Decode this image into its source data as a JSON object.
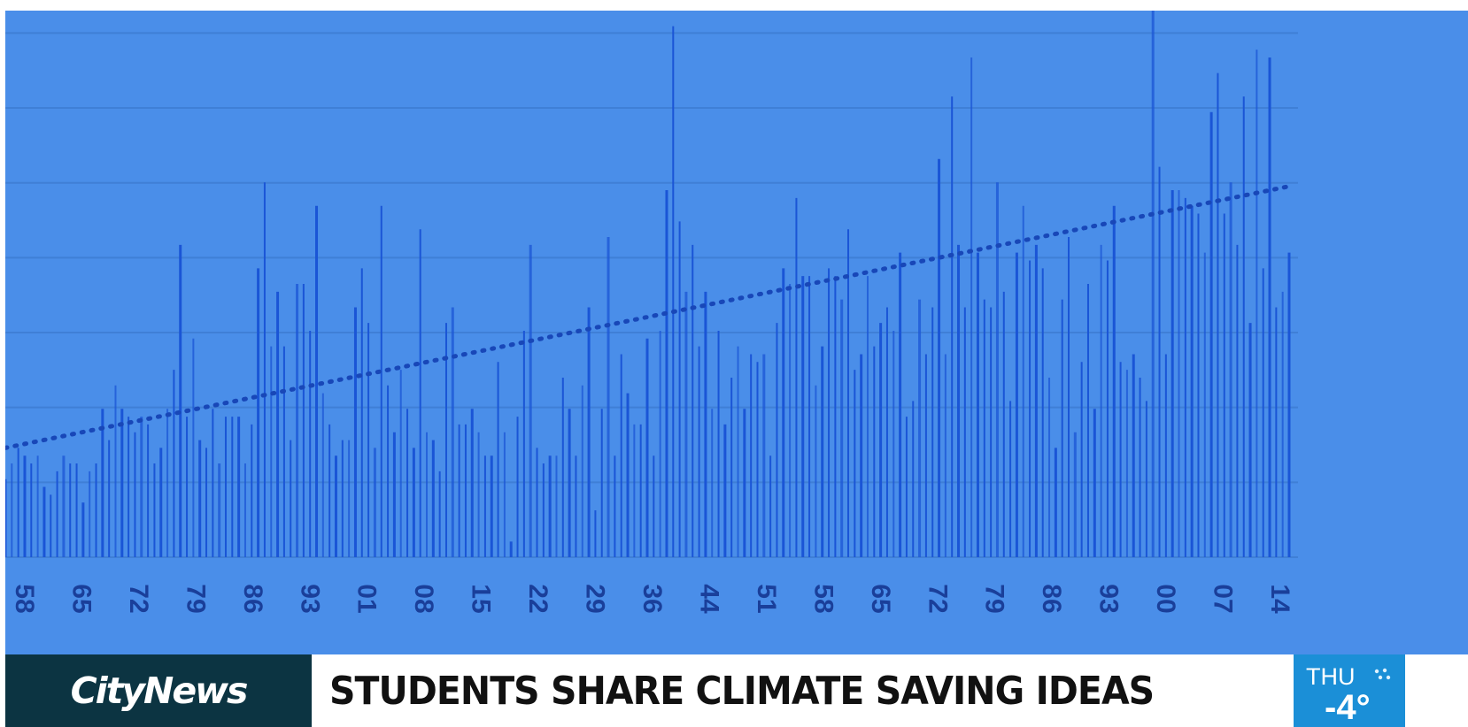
{
  "chart_data": {
    "type": "bar",
    "title": "",
    "xlabel": "",
    "ylabel": "",
    "ylim": [
      0,
      7
    ],
    "grid": true,
    "trendline": {
      "style": "dotted",
      "start": 1.4,
      "end": 4.75,
      "color": "#1847b8"
    },
    "x_tick_labels": [
      "58",
      "65",
      "72",
      "79",
      "86",
      "93",
      "01",
      "08",
      "15",
      "22",
      "29",
      "36",
      "44",
      "51",
      "58",
      "65",
      "72",
      "79",
      "86",
      "93",
      "00",
      "07",
      "14"
    ],
    "values": [
      1.0,
      1.2,
      1.4,
      1.3,
      1.2,
      1.3,
      0.9,
      0.8,
      1.1,
      1.3,
      1.2,
      1.2,
      0.7,
      1.1,
      1.2,
      1.9,
      1.5,
      2.2,
      1.9,
      1.8,
      1.6,
      1.8,
      1.7,
      1.2,
      1.4,
      1.9,
      2.4,
      4.0,
      1.8,
      2.8,
      1.5,
      1.4,
      1.9,
      1.2,
      1.8,
      1.8,
      1.8,
      1.2,
      1.7,
      3.7,
      4.8,
      2.7,
      3.4,
      2.7,
      1.5,
      3.5,
      3.5,
      2.9,
      4.5,
      2.1,
      1.7,
      1.3,
      1.5,
      1.5,
      3.2,
      3.7,
      3.0,
      1.4,
      4.5,
      2.2,
      1.6,
      2.4,
      1.9,
      1.4,
      4.2,
      1.6,
      1.5,
      1.1,
      3.0,
      3.2,
      1.7,
      1.7,
      1.9,
      1.6,
      1.3,
      1.3,
      2.5,
      1.6,
      0.2,
      1.8,
      2.9,
      4.0,
      1.4,
      1.2,
      1.3,
      1.3,
      2.3,
      1.9,
      1.3,
      2.2,
      3.2,
      0.6,
      1.9,
      4.1,
      1.3,
      2.6,
      2.1,
      1.7,
      1.7,
      2.8,
      1.3,
      2.9,
      4.7,
      6.8,
      4.3,
      3.4,
      4.0,
      2.7,
      3.4,
      1.9,
      2.9,
      1.7,
      2.3,
      2.7,
      1.9,
      2.6,
      2.5,
      2.6,
      1.3,
      3.0,
      3.7,
      3.5,
      4.6,
      3.6,
      3.6,
      2.2,
      2.7,
      3.7,
      3.6,
      3.3,
      4.2,
      2.4,
      2.6,
      3.6,
      2.7,
      3.0,
      3.2,
      2.9,
      3.9,
      1.8,
      2.0,
      3.3,
      2.6,
      3.2,
      5.1,
      2.6,
      5.9,
      4.0,
      3.2,
      6.4,
      3.9,
      3.3,
      3.2,
      4.8,
      3.4,
      2.0,
      3.9,
      4.5,
      3.8,
      4.0,
      3.7,
      2.3,
      1.4,
      3.3,
      4.1,
      1.6,
      2.5,
      3.5,
      1.9,
      4.0,
      3.8,
      4.5,
      2.5,
      2.4,
      2.6,
      2.3,
      2.0,
      7.0,
      5.0,
      2.6,
      4.7,
      4.7,
      4.6,
      4.5,
      4.4,
      3.9,
      5.7,
      6.2,
      4.4,
      4.8,
      4.0,
      5.9,
      3.0,
      6.5,
      3.7,
      6.4,
      3.2,
      3.4,
      3.9
    ],
    "bar_color": "#1a55d6"
  },
  "broadcast": {
    "logo": "CityNews",
    "headline": "STUDENTS SHARE CLIMATE SAVING IDEAS",
    "weather_day": "THU",
    "weather_temp": "-4°",
    "weather_icon": "snow-icon"
  }
}
